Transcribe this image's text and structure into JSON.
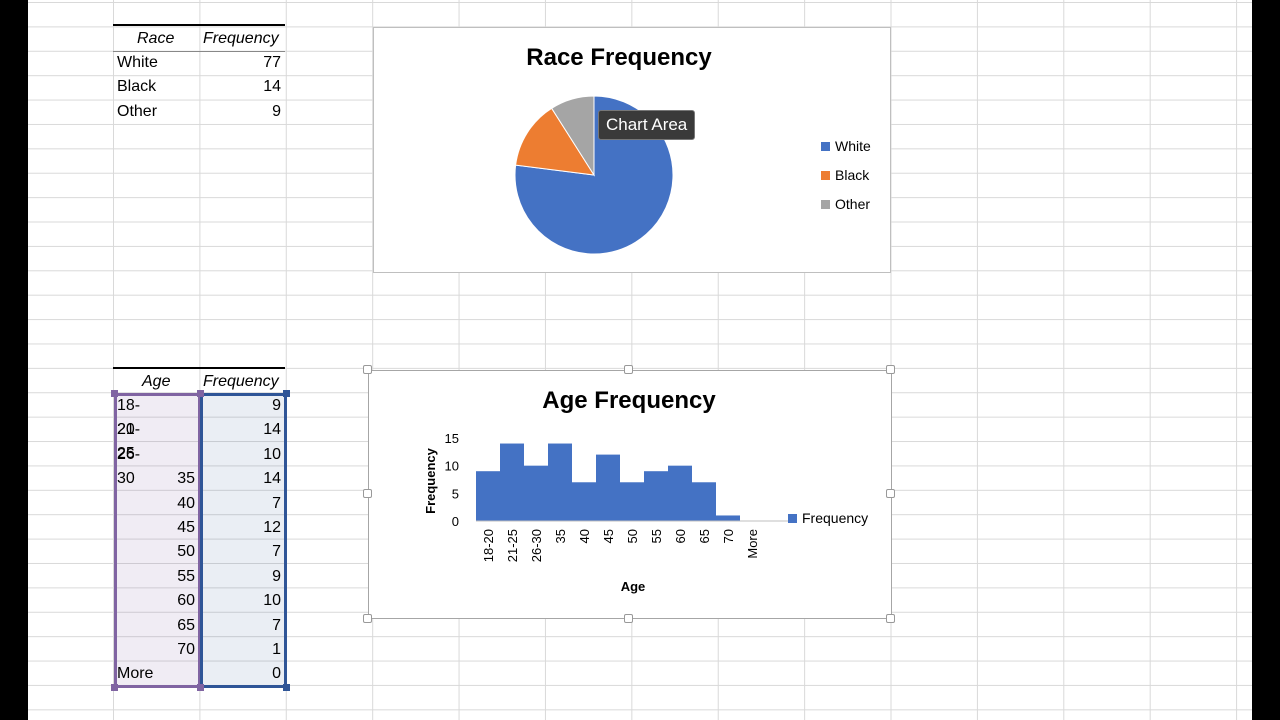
{
  "race_table": {
    "header_race": "Race",
    "header_frequency": "Frequency",
    "rows": [
      {
        "label": "White",
        "value": "77"
      },
      {
        "label": "Black",
        "value": "14"
      },
      {
        "label": "Other",
        "value": "9"
      }
    ]
  },
  "age_table": {
    "header_age": "Age",
    "header_frequency": "Frequency",
    "rows": [
      {
        "label": "18-20",
        "value": "9"
      },
      {
        "label": "21-25",
        "value": "14"
      },
      {
        "label": "26-30",
        "value": "10"
      },
      {
        "label": "35",
        "value": "14"
      },
      {
        "label": "40",
        "value": "7"
      },
      {
        "label": "45",
        "value": "12"
      },
      {
        "label": "50",
        "value": "7"
      },
      {
        "label": "55",
        "value": "9"
      },
      {
        "label": "60",
        "value": "10"
      },
      {
        "label": "65",
        "value": "7"
      },
      {
        "label": "70",
        "value": "1"
      },
      {
        "label": "More",
        "value": "0"
      }
    ]
  },
  "tooltip": {
    "text": "Chart Area"
  },
  "colors": {
    "blue": "#4472C4",
    "orange": "#ED7D31",
    "gray": "#A5A5A5",
    "age_selection": "#8064A2",
    "freq_selection": "#2F5597"
  },
  "chart_data": [
    {
      "type": "pie",
      "title": "Race Frequency",
      "categories": [
        "White",
        "Black",
        "Other"
      ],
      "values": [
        77,
        14,
        9
      ],
      "legend": "right"
    },
    {
      "type": "bar",
      "title": "Age Frequency",
      "xlabel": "Age",
      "ylabel": "Frequency",
      "categories": [
        "18-20",
        "21-25",
        "26-30",
        "35",
        "40",
        "45",
        "50",
        "55",
        "60",
        "65",
        "70",
        "More"
      ],
      "series": [
        {
          "name": "Frequency",
          "values": [
            9,
            14,
            10,
            14,
            7,
            12,
            7,
            9,
            10,
            7,
            1,
            0
          ]
        }
      ],
      "yticks": [
        "0",
        "5",
        "10",
        "15"
      ],
      "ylim": [
        0,
        15
      ],
      "legend": "right"
    }
  ]
}
